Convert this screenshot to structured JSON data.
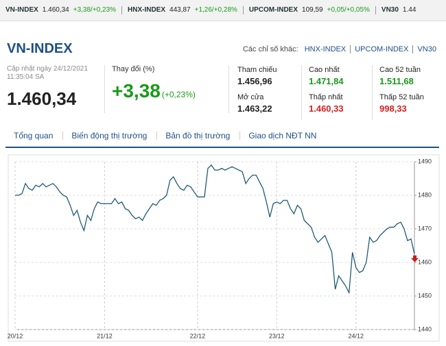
{
  "ticker": [
    {
      "name": "VN-INDEX",
      "value": "1.460,34",
      "change": "+3,38/+0,23%"
    },
    {
      "name": "HNX-INDEX",
      "value": "443,87",
      "change": "+1,26/+0,28%"
    },
    {
      "name": "UPCOM-INDEX",
      "value": "109,59",
      "change": "+0,05/+0,05%"
    },
    {
      "name": "VN30",
      "value": "1.44",
      "change": ""
    }
  ],
  "header": {
    "title": "VN-INDEX",
    "others_label": "Các chỉ số khác:",
    "others": [
      "HNX-INDEX",
      "UPCOM-INDEX",
      "VN30"
    ]
  },
  "info": {
    "updated": "Cập nhật ngày 24/12/2021",
    "time": "11:35:04 SA",
    "price": "1.460,34",
    "change_label": "Thay đổi (%)",
    "change": "+3,38",
    "change_pct": "(+0,23%)",
    "stats": [
      {
        "label": "Tham chiếu",
        "value": "1.456,96",
        "tone": "neutral"
      },
      {
        "label": "Cao nhất",
        "value": "1.471,84",
        "tone": "up"
      },
      {
        "label": "Cao 52 tuần",
        "value": "1.511,68",
        "tone": "up"
      },
      {
        "label": "Mở cửa",
        "value": "1.463,22",
        "tone": "neutral"
      },
      {
        "label": "Thấp nhất",
        "value": "1.460,33",
        "tone": "down"
      },
      {
        "label": "Thấp 52 tuần",
        "value": "998,33",
        "tone": "down"
      }
    ]
  },
  "tabs": [
    "Tổng quan",
    "Biến động thị trường",
    "Bản đồ thị trường",
    "Giao dịch NĐT NN"
  ],
  "chart_data": {
    "type": "line",
    "color": "#1f5a74",
    "grid": true,
    "ylim": [
      1440,
      1490
    ],
    "yticks": [
      1440,
      1450,
      1460,
      1470,
      1480,
      1490
    ],
    "xlim": [
      0,
      116
    ],
    "xticks": [
      {
        "value": 0,
        "label": "20/12"
      },
      {
        "value": 26,
        "label": "21/12"
      },
      {
        "value": 53,
        "label": "22/12"
      },
      {
        "value": 76,
        "label": "23/12"
      },
      {
        "value": 99,
        "label": "24/12"
      }
    ],
    "values": [
      1480,
      1480,
      1480.5,
      1483.5,
      1482,
      1481.5,
      1483,
      1482.5,
      1483.5,
      1482.5,
      1483,
      1483.5,
      1482.5,
      1481,
      1480,
      1479.5,
      1477,
      1474,
      1475.5,
      1472,
      1469.5,
      1474,
      1472.5,
      1476,
      1478,
      1477.5,
      1477.5,
      1477.5,
      1477.5,
      1479,
      1477.5,
      1478,
      1476,
      1475.5,
      1474,
      1473,
      1473.5,
      1472.5,
      1474.5,
      1476,
      1477.5,
      1477,
      1478.5,
      1479,
      1480,
      1484.5,
      1485.5,
      1483.5,
      1482,
      1481.5,
      1483,
      1482.5,
      1481,
      1479.5,
      1479.5,
      1479.5,
      1488,
      1489,
      1487.5,
      1487.5,
      1488,
      1487.5,
      1488,
      1488.5,
      1488,
      1487.5,
      1487,
      1483.5,
      1485,
      1486,
      1486,
      1484,
      1482,
      1478,
      1473.5,
      1477.5,
      1478,
      1477.5,
      1478.5,
      1478.5,
      1476,
      1474.5,
      1477,
      1476,
      1472.5,
      1471.5,
      1470.5,
      1467.5,
      1466,
      1467,
      1468,
      1465.5,
      1463,
      1452,
      1456,
      1454.5,
      1453,
      1451,
      1463,
      1458.5,
      1457,
      1457.5,
      1460,
      1467.5,
      1466,
      1466.5,
      1468,
      1469,
      1470,
      1470.5,
      1470.5,
      1471.5,
      1472,
      1470,
      1466.5,
      1467,
      1462.5
    ]
  }
}
